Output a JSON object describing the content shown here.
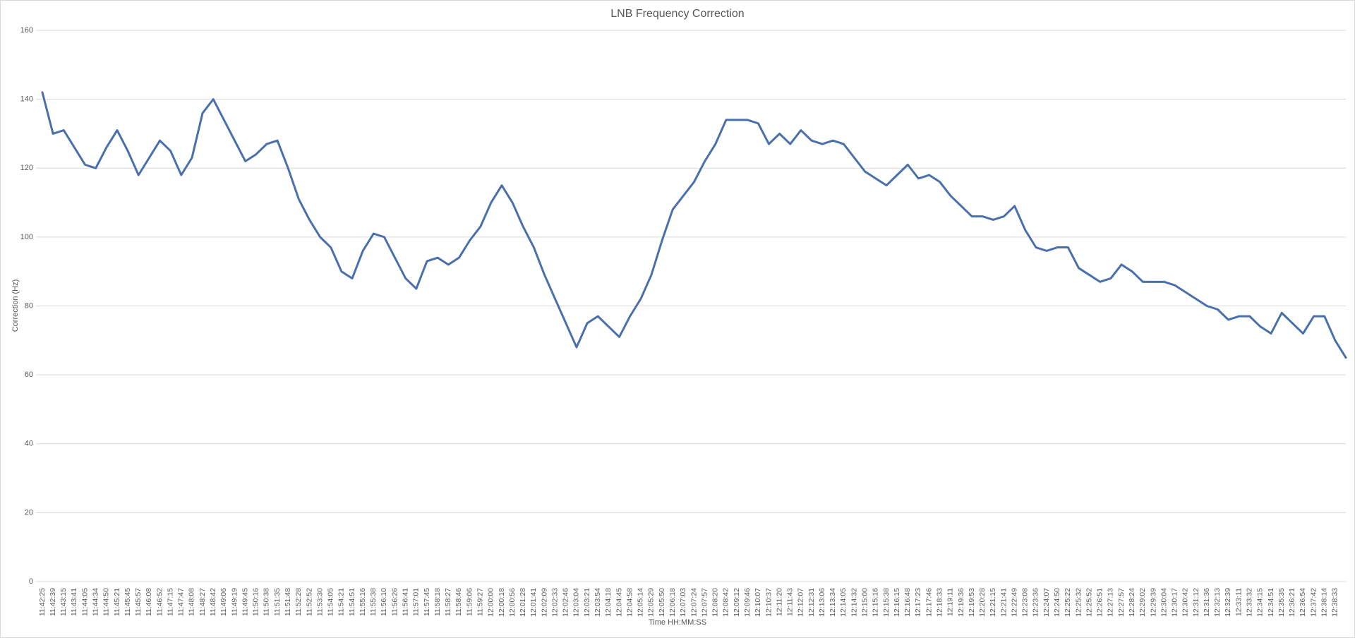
{
  "chart_data": {
    "type": "line",
    "title": "LNB Frequency Correction",
    "x_label": "Time HH:MM:SS",
    "y_label": "Correction (Hz)",
    "color": "#4a70ab",
    "grid": true,
    "ylim": [
      0,
      160
    ],
    "yticks": [
      0,
      20,
      40,
      60,
      80,
      100,
      120,
      140,
      160
    ],
    "categories": [
      "11:42:25",
      "11:42:39",
      "11:43:15",
      "11:43:41",
      "11:44:05",
      "11:44:34",
      "11:44:50",
      "11:45:21",
      "11:45:45",
      "11:45:57",
      "11:46:08",
      "11:46:52",
      "11:47:15",
      "11:47:47",
      "11:48:08",
      "11:48:27",
      "11:48:42",
      "11:49:06",
      "11:49:19",
      "11:49:45",
      "11:50:16",
      "11:50:38",
      "11:51:35",
      "11:51:48",
      "11:52:28",
      "11:52:52",
      "11:53:30",
      "11:54:05",
      "11:54:21",
      "11:54:51",
      "11:55:16",
      "11:55:38",
      "11:56:10",
      "11:56:26",
      "11:56:41",
      "11:57:01",
      "11:57:45",
      "11:58:18",
      "11:58:27",
      "11:58:46",
      "11:59:06",
      "11:59:27",
      "12:00:00",
      "12:00:18",
      "12:00:56",
      "12:01:28",
      "12:01:41",
      "12:02:09",
      "12:02:33",
      "12:02:46",
      "12:03:04",
      "12:03:21",
      "12:03:54",
      "12:04:18",
      "12:04:45",
      "12:04:58",
      "12:05:14",
      "12:05:29",
      "12:05:50",
      "12:06:18",
      "12:07:03",
      "12:07:24",
      "12:07:57",
      "12:08:20",
      "12:08:42",
      "12:09:12",
      "12:09:46",
      "12:10:07",
      "12:10:37",
      "12:11:20",
      "12:11:43",
      "12:12:07",
      "12:12:31",
      "12:13:06",
      "12:13:34",
      "12:14:05",
      "12:14:32",
      "12:15:00",
      "12:15:16",
      "12:15:38",
      "12:16:15",
      "12:16:48",
      "12:17:23",
      "12:17:46",
      "12:18:33",
      "12:19:11",
      "12:19:36",
      "12:19:53",
      "12:20:28",
      "12:21:15",
      "12:21:41",
      "12:22:49",
      "12:23:08",
      "12:23:36",
      "12:24:07",
      "12:24:50",
      "12:25:22",
      "12:25:32",
      "12:25:52",
      "12:26:51",
      "12:27:13",
      "12:27:57",
      "12:28:24",
      "12:29:02",
      "12:29:39",
      "12:30:04",
      "12:30:17",
      "12:30:42",
      "12:31:12",
      "12:31:36",
      "12:32:13",
      "12:32:39",
      "12:33:11",
      "12:33:32",
      "12:34:15",
      "12:34:51",
      "12:35:35",
      "12:36:21",
      "12:36:54",
      "12:37:42",
      "12:38:14",
      "12:38:33",
      null
    ],
    "values": [
      142,
      130,
      131,
      126,
      121,
      120,
      126,
      131,
      125,
      118,
      123,
      128,
      125,
      118,
      123,
      136,
      140,
      134,
      128,
      122,
      124,
      127,
      128,
      120,
      111,
      105,
      100,
      97,
      90,
      88,
      96,
      101,
      100,
      94,
      88,
      85,
      93,
      94,
      92,
      94,
      99,
      103,
      110,
      115,
      110,
      103,
      97,
      89,
      82,
      75,
      68,
      75,
      77,
      74,
      71,
      77,
      82,
      89,
      99,
      108,
      112,
      116,
      122,
      127,
      134,
      134,
      134,
      133,
      127,
      130,
      127,
      131,
      128,
      127,
      128,
      127,
      123,
      119,
      117,
      115,
      118,
      121,
      117,
      118,
      116,
      112,
      109,
      106,
      106,
      105,
      106,
      109,
      102,
      97,
      96,
      97,
      97,
      91,
      89,
      87,
      88,
      92,
      90,
      87,
      87,
      87,
      86,
      84,
      82,
      80,
      79,
      76,
      77,
      77,
      74,
      72,
      78,
      75,
      72,
      77,
      77,
      70,
      65
    ]
  }
}
